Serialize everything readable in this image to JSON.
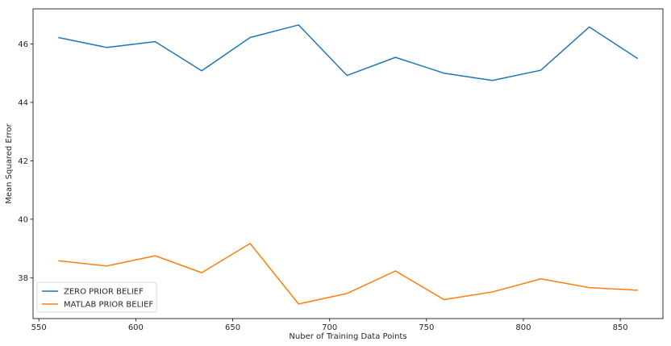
{
  "chart_data": {
    "type": "line",
    "title": "",
    "xlabel": "Nuber of Training Data Points",
    "ylabel": "Mean Squared Error",
    "xlim": [
      547,
      872
    ],
    "ylim": [
      36.6,
      47.2
    ],
    "xticks": [
      550,
      600,
      650,
      700,
      750,
      800,
      850
    ],
    "yticks": [
      38,
      40,
      42,
      44,
      46
    ],
    "grid": false,
    "legend_position": "lower-left",
    "series": [
      {
        "name": "ZERO PRIOR BELIEF",
        "color": "#1f77b4",
        "x": [
          560,
          585,
          610,
          634,
          659,
          684,
          709,
          734,
          759,
          784,
          809,
          834,
          859
        ],
        "y": [
          46.22,
          45.88,
          46.08,
          45.08,
          46.22,
          46.65,
          44.92,
          45.54,
          45.0,
          44.75,
          45.1,
          46.58,
          45.5
        ]
      },
      {
        "name": "MATLAB PRIOR BELIEF",
        "color": "#ff7f0e",
        "x": [
          560,
          585,
          610,
          634,
          659,
          684,
          709,
          734,
          759,
          784,
          809,
          834,
          859
        ],
        "y": [
          38.58,
          38.4,
          38.75,
          38.17,
          39.17,
          37.1,
          37.46,
          38.23,
          37.25,
          37.51,
          37.96,
          37.66,
          37.57
        ]
      }
    ]
  }
}
